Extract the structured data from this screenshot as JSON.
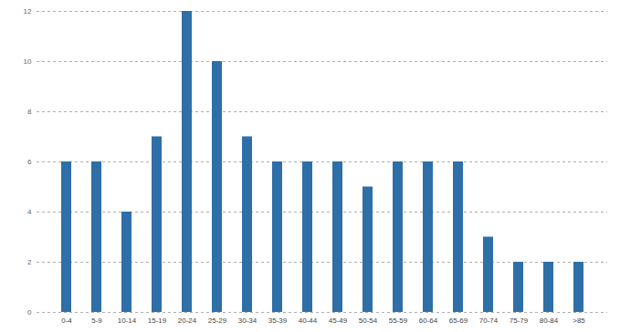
{
  "chart_data": {
    "type": "bar",
    "categories": [
      "0-4",
      "5-9",
      "10-14",
      "15-19",
      "20-24",
      "25-29",
      "30-34",
      "35-39",
      "40-44",
      "45-49",
      "50-54",
      "55-59",
      "60-64",
      "65-69",
      "70-74",
      "75-79",
      "80-84",
      ">85"
    ],
    "values": [
      6,
      6,
      4,
      7,
      12,
      10,
      7,
      6,
      6,
      6,
      5,
      6,
      6,
      6,
      3,
      2,
      2,
      2
    ],
    "color": "#2e6fa7",
    "ylim": [
      0,
      12
    ],
    "yticks": [
      0,
      2,
      4,
      6,
      8,
      10,
      12
    ],
    "grid": true
  }
}
